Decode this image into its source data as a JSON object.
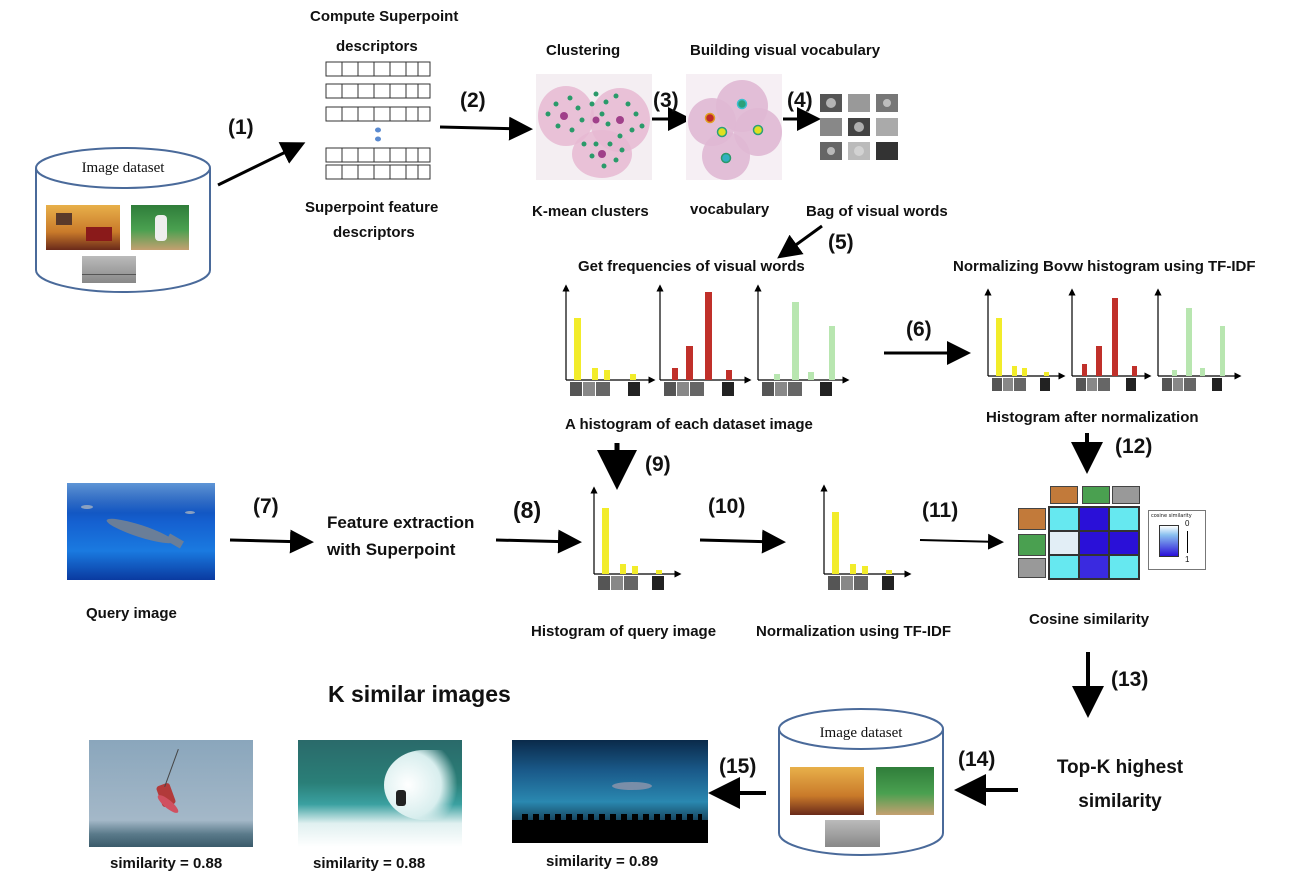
{
  "labels": {
    "compute_superpoint": "Compute Superpoint",
    "descriptors": "descriptors",
    "superpoint_feature": "Superpoint feature",
    "descriptors2": "descriptors",
    "clustering": "Clustering",
    "building_vocab": "Building visual vocabulary",
    "kmean": "K-mean clusters",
    "vocabulary": "vocabulary",
    "bovw": "Bag of visual words",
    "get_freq": "Get frequencies of visual words",
    "normalizing_bovw": "Normalizing Bovw histogram using TF-IDF",
    "hist_each": "A histogram of each dataset image",
    "hist_after_norm": "Histogram after normalization",
    "query_image": "Query image",
    "feature_extraction_l1": "Feature extraction",
    "feature_extraction_l2": "with Superpoint",
    "hist_query": "Histogram of query image",
    "norm_tfidf": "Normalization using TF-IDF",
    "cosine": "Cosine similarity",
    "cosine_legend_title": "cosine similarity",
    "cosine_legend_0": "0",
    "cosine_legend_1": "1",
    "k_similar": "K similar images",
    "topk_l1": "Top-K highest",
    "topk_l2": "similarity",
    "dataset_top": "Image dataset",
    "dataset_bottom": "Image dataset"
  },
  "steps": [
    "(1)",
    "(2)",
    "(3)",
    "(4)",
    "(5)",
    "(6)",
    "(7)",
    "(8)",
    "(9)",
    "(10)",
    "(11)",
    "(12)",
    "(13)",
    "(14)",
    "(15)"
  ],
  "results": [
    {
      "caption": "similarity = 0.88",
      "subject": "kitesurfer"
    },
    {
      "caption": "similarity = 0.88",
      "subject": "surfer-wave"
    },
    {
      "caption": "similarity = 0.89",
      "subject": "aquarium-crowd"
    }
  ],
  "colors": {
    "bar_yellow": "#f2ec2a",
    "bar_red": "#c0302a",
    "bar_green": "#b8e6b0",
    "cluster_fill": "#e6b8d2",
    "cluster_points": "#2a9a6a",
    "cos_cyan": "#66e8f0",
    "cos_blue": "#2a10d8",
    "cos_pale": "#e2eef6"
  }
}
